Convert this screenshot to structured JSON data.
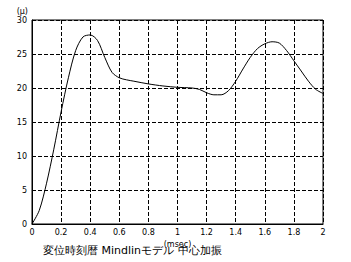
{
  "chart_data": {
    "type": "line",
    "title": "変位時刻暦 Mindlinモデル 中心加振",
    "x_label": "(msec)",
    "y_label": "(μ)",
    "x": [
      0,
      0.05,
      0.1,
      0.15,
      0.2,
      0.25,
      0.3,
      0.35,
      0.4,
      0.45,
      0.5,
      0.55,
      0.6,
      0.65,
      0.7,
      0.8,
      0.9,
      1.0,
      1.1,
      1.15,
      1.2,
      1.25,
      1.3,
      1.35,
      1.4,
      1.45,
      1.5,
      1.55,
      1.6,
      1.65,
      1.7,
      1.75,
      1.8,
      1.85,
      1.9,
      1.95,
      2.0
    ],
    "values": [
      0,
      2,
      6,
      11,
      16.5,
      21.5,
      25.5,
      27.5,
      27.8,
      27,
      24.5,
      22.3,
      21.5,
      21.2,
      21,
      20.6,
      20.3,
      20.1,
      20,
      19.8,
      19.3,
      19,
      19,
      19.6,
      21,
      22.8,
      24.5,
      25.8,
      26.5,
      26.8,
      26.6,
      25.5,
      24,
      22.5,
      21,
      19.8,
      19.2
    ],
    "color": "#000000",
    "xlim": [
      0,
      2
    ],
    "xticks": [
      0,
      0.2,
      0.4,
      0.6,
      0.8,
      1,
      1.2,
      1.4,
      1.6,
      1.8,
      2
    ],
    "ylim": [
      0,
      30
    ],
    "yticks": [
      0,
      5,
      10,
      15,
      20,
      25,
      30
    ],
    "grid": true
  }
}
